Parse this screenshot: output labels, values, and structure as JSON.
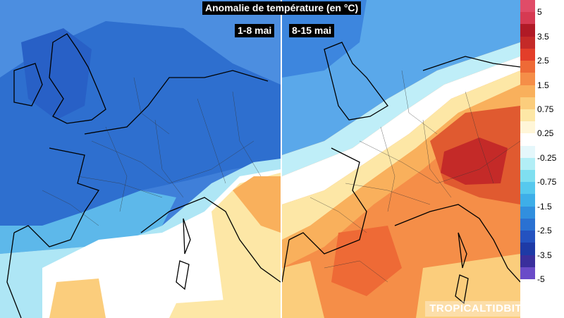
{
  "title": "Anomalie de température (en °C)",
  "panels": [
    {
      "period": "1-8 mai"
    },
    {
      "period": "8-15 mai"
    }
  ],
  "colorbar": {
    "swatches": [
      "#e04c68",
      "#d63a52",
      "#b01a26",
      "#c42a28",
      "#e33e2a",
      "#ee6a36",
      "#f58e48",
      "#f9b05c",
      "#fbcd7c",
      "#fde7a6",
      "#fff6d8",
      "#ffffff",
      "#e5f7fb",
      "#b2eef6",
      "#7fdff0",
      "#56c9ee",
      "#3eaee8",
      "#318fde",
      "#2a71d2",
      "#2452c0",
      "#1e3aa6",
      "#3a2f9c",
      "#6a4bc8"
    ],
    "labels": [
      "5",
      "3.5",
      "2.5",
      "1.5",
      "0.75",
      "0.25",
      "-0.25",
      "-0.75",
      "-1.5",
      "-2.5",
      "-3.5",
      "-5"
    ]
  },
  "watermark": "TROPICALTIDBITS.COM"
}
